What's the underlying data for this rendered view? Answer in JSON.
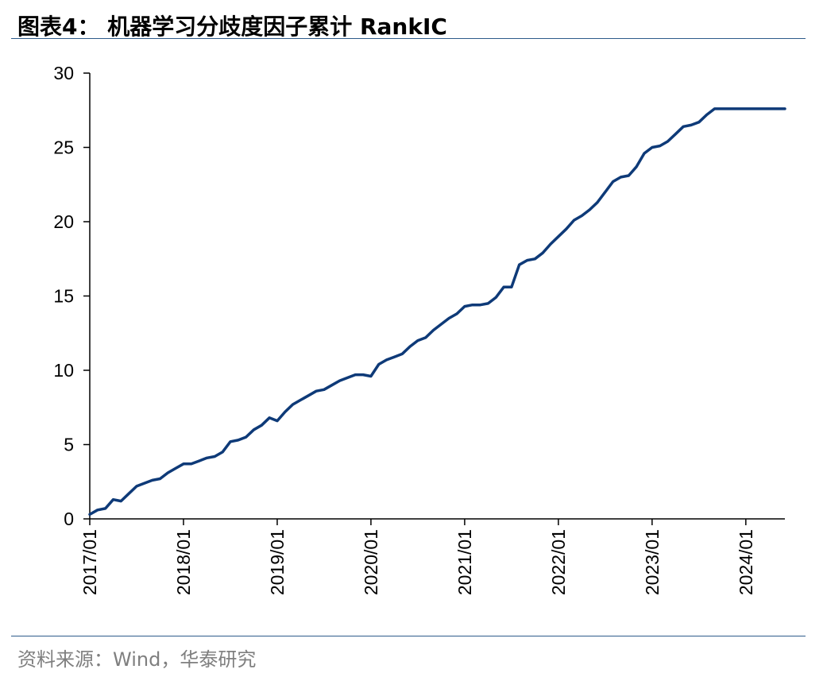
{
  "header": {
    "title": "图表4： 机器学习分歧度因子累计 RankIC"
  },
  "footer": {
    "source": "资料来源：Wind，华泰研究"
  },
  "colors": {
    "line": "#0e3a78",
    "rule": "#2e5b8a",
    "source_text": "#7f7f7f"
  },
  "chart_data": {
    "type": "line",
    "title": "机器学习分歧度因子累计 RankIC",
    "xlabel": "",
    "ylabel": "",
    "ylim": [
      0,
      30
    ],
    "yticks": [
      0,
      5,
      10,
      15,
      20,
      25,
      30
    ],
    "xlim": [
      "2017/01",
      "2024/06"
    ],
    "xticks": [
      "2017/01",
      "2018/01",
      "2019/01",
      "2020/01",
      "2021/01",
      "2022/01",
      "2023/01",
      "2024/01"
    ],
    "grid": false,
    "legend": "none",
    "series": [
      {
        "x": [
          "2017/01",
          "2017/02",
          "2017/03",
          "2017/04",
          "2017/05",
          "2017/06",
          "2017/07",
          "2017/08",
          "2017/09",
          "2017/10",
          "2017/11",
          "2017/12",
          "2018/01",
          "2018/02",
          "2018/03",
          "2018/04",
          "2018/05",
          "2018/06",
          "2018/07",
          "2018/08",
          "2018/09",
          "2018/10",
          "2018/11",
          "2018/12",
          "2019/01",
          "2019/02",
          "2019/03",
          "2019/04",
          "2019/05",
          "2019/06",
          "2019/07",
          "2019/08",
          "2019/09",
          "2019/10",
          "2019/11",
          "2019/12",
          "2020/01",
          "2020/02",
          "2020/03",
          "2020/04",
          "2020/05",
          "2020/06",
          "2020/07",
          "2020/08",
          "2020/09",
          "2020/10",
          "2020/11",
          "2020/12",
          "2021/01",
          "2021/02",
          "2021/03",
          "2021/04",
          "2021/05",
          "2021/06",
          "2021/07",
          "2021/08",
          "2021/09",
          "2021/10",
          "2021/11",
          "2021/12",
          "2022/01",
          "2022/02",
          "2022/03",
          "2022/04",
          "2022/05",
          "2022/06",
          "2022/07",
          "2022/08",
          "2022/09",
          "2022/10",
          "2022/11",
          "2022/12",
          "2023/01",
          "2023/02",
          "2023/03",
          "2023/04",
          "2023/05",
          "2023/06",
          "2023/07",
          "2023/08",
          "2023/09",
          "2023/10",
          "2023/11",
          "2023/12",
          "2024/01",
          "2024/02",
          "2024/03",
          "2024/04",
          "2024/05",
          "2024/06"
        ],
        "values": [
          0.3,
          0.6,
          0.7,
          1.3,
          1.2,
          1.7,
          2.2,
          2.4,
          2.6,
          2.7,
          3.1,
          3.4,
          3.7,
          3.7,
          3.9,
          4.1,
          4.2,
          4.5,
          5.2,
          5.3,
          5.5,
          6.0,
          6.3,
          6.8,
          6.6,
          7.2,
          7.7,
          8.0,
          8.3,
          8.6,
          8.7,
          9.0,
          9.3,
          9.5,
          9.7,
          9.7,
          9.6,
          10.4,
          10.7,
          10.9,
          11.1,
          11.6,
          12.0,
          12.2,
          12.7,
          13.1,
          13.5,
          13.8,
          14.3,
          14.4,
          14.4,
          14.5,
          14.9,
          15.6,
          15.6,
          17.1,
          17.4,
          17.5,
          17.9,
          18.5,
          19.0,
          19.5,
          20.1,
          20.4,
          20.8,
          21.3,
          22.0,
          22.7,
          23.0,
          23.1,
          23.7,
          24.6,
          25.0,
          25.1,
          25.4,
          25.9,
          26.4,
          26.5,
          26.7,
          27.2,
          27.6,
          27.6,
          27.6,
          27.6,
          27.6,
          27.6,
          27.6,
          27.6,
          27.6,
          27.6
        ]
      }
    ]
  }
}
